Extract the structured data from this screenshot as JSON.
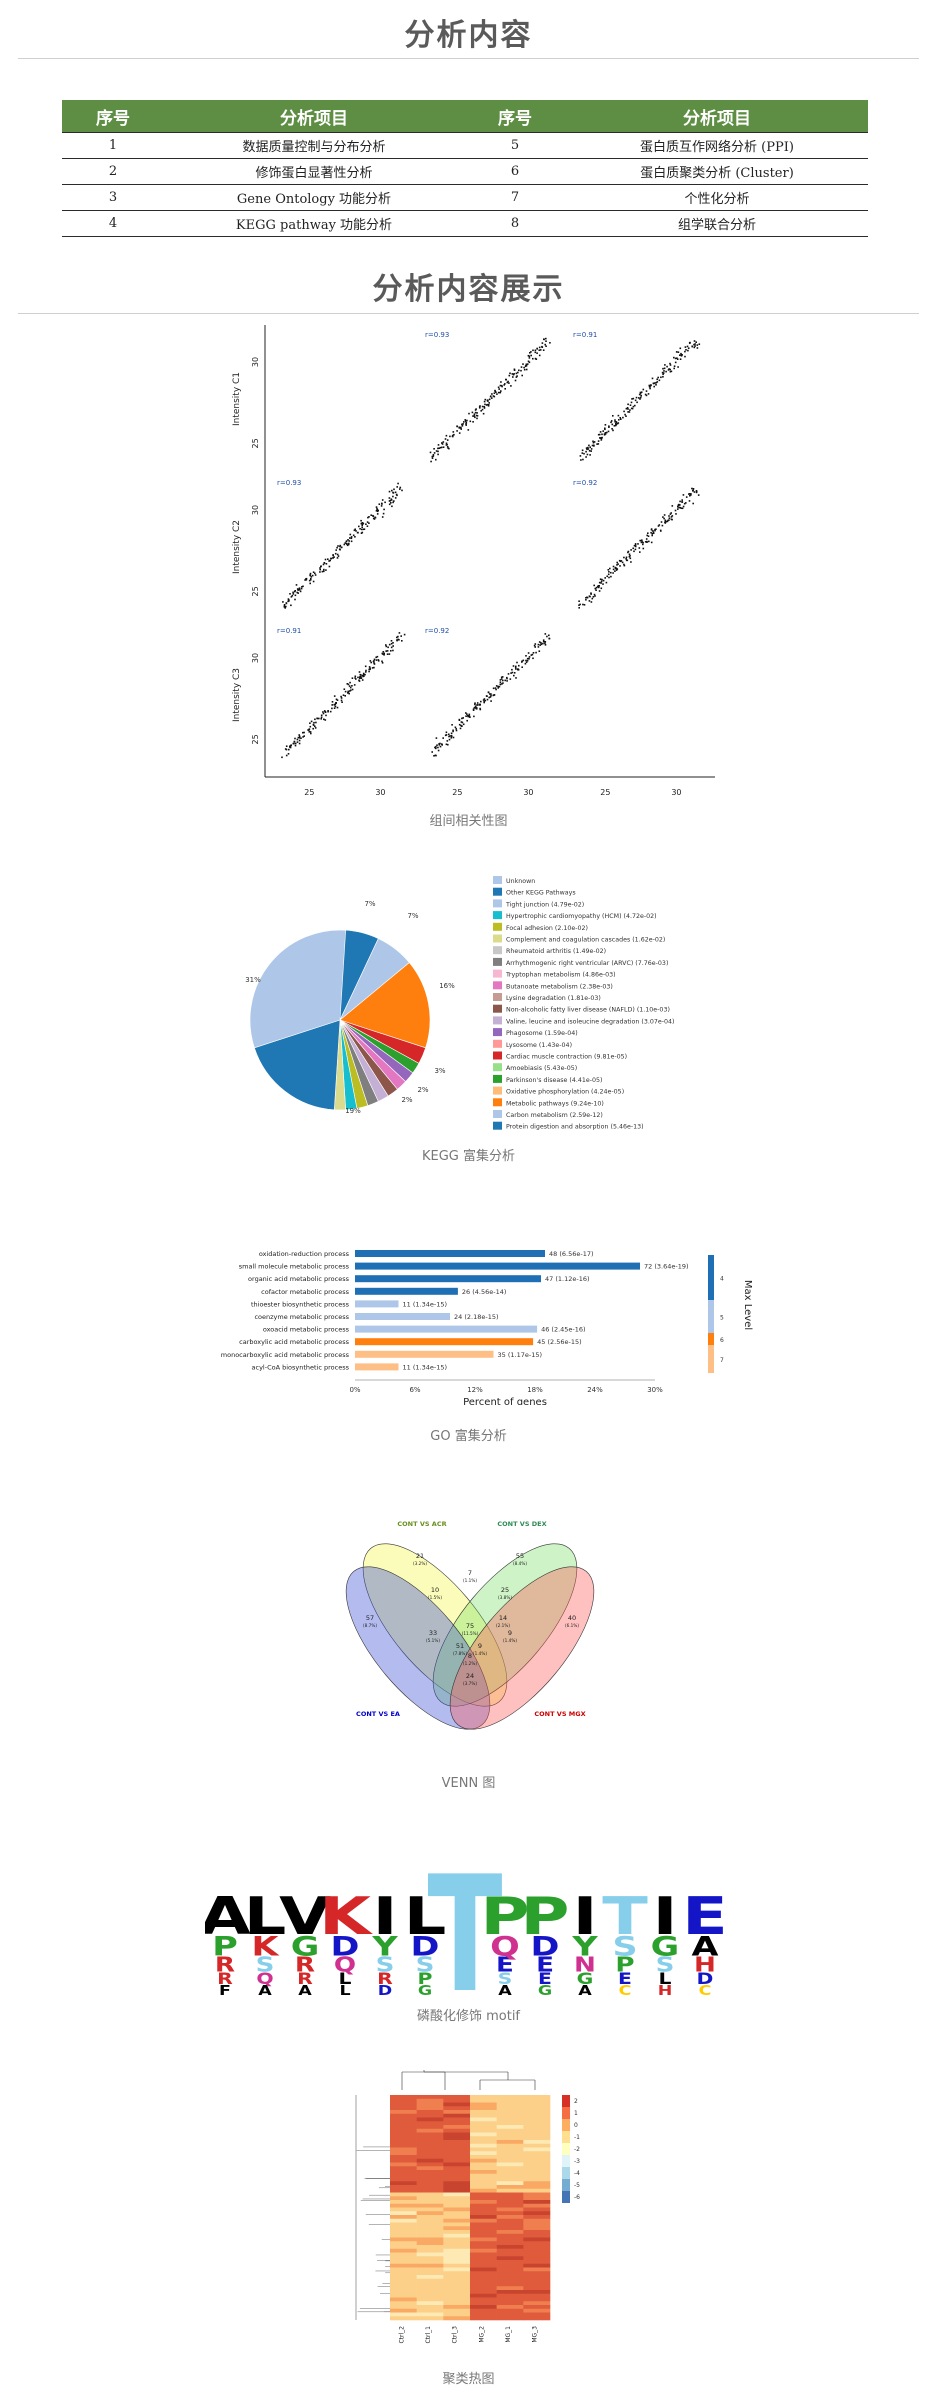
{
  "section1": {
    "title": "分析内容"
  },
  "table": {
    "headers": [
      "序号",
      "分析项目",
      "序号",
      "分析项目"
    ],
    "rows": [
      [
        "1",
        "数据质量控制与分布分析",
        "5",
        "蛋白质互作网络分析 (PPI)"
      ],
      [
        "2",
        "修饰蛋白显著性分析",
        "6",
        "蛋白质聚类分析 (Cluster)"
      ],
      [
        "3",
        "Gene Ontology 功能分析",
        "7",
        "个性化分析"
      ],
      [
        "4",
        "KEGG pathway 功能分析",
        "8",
        "组学联合分析"
      ]
    ]
  },
  "section2": {
    "title": "分析内容展示"
  },
  "figures": {
    "correlation": {
      "caption": "组间相关性图",
      "row_labels": [
        "Intensity C1",
        "Intensity C2",
        "Intensity C3"
      ],
      "col_labels": [
        "Intensity C1",
        "Intensity C2",
        "Intensity C3"
      ],
      "r_labels": [
        "r=0.93",
        "r=0.91",
        "r=0.93",
        "r=0.92",
        "r=0.91",
        "r=0.92"
      ],
      "ticks_a": "25",
      "ticks_b": "30"
    },
    "kegg": {
      "caption": "KEGG 富集分析",
      "slice_labels": [
        "7%",
        "7%",
        "16%",
        "3%",
        "2%",
        "2%",
        "19%",
        "31%"
      ],
      "legend": [
        {
          "label": "Unknown",
          "color": "#aec7e8"
        },
        {
          "label": "Other KEGG Pathways",
          "color": "#1f77b4"
        },
        {
          "label": "Tight junction (4.79e-02)",
          "color": "#aec7e8"
        },
        {
          "label": "Hypertrophic cardiomyopathy (HCM) (4.72e-02)",
          "color": "#17becf"
        },
        {
          "label": "Focal adhesion (2.10e-02)",
          "color": "#bcbd22"
        },
        {
          "label": "Complement and coagulation cascades (1.62e-02)",
          "color": "#dbdb8d"
        },
        {
          "label": "Rheumatoid arthritis (1.49e-02)",
          "color": "#c7c7c7"
        },
        {
          "label": "Arrhythmogenic right ventricular (ARVC) (7.76e-03)",
          "color": "#7f7f7f"
        },
        {
          "label": "Tryptophan metabolism (4.86e-03)",
          "color": "#f7b6d2"
        },
        {
          "label": "Butanoate metabolism (2.38e-03)",
          "color": "#e377c2"
        },
        {
          "label": "Lysine degradation (1.81e-03)",
          "color": "#c49c94"
        },
        {
          "label": "Non-alcoholic fatty liver disease (NAFLD) (1.10e-03)",
          "color": "#8c564b"
        },
        {
          "label": "Valine, leucine and isoleucine degradation (3.07e-04)",
          "color": "#c5b0d5"
        },
        {
          "label": "Phagosome (1.59e-04)",
          "color": "#9467bd"
        },
        {
          "label": "Lysosome (1.43e-04)",
          "color": "#ff9896"
        },
        {
          "label": "Cardiac muscle contraction (9.81e-05)",
          "color": "#d62728"
        },
        {
          "label": "Amoebiasis (5.43e-05)",
          "color": "#98df8a"
        },
        {
          "label": "Parkinson's disease (4.41e-05)",
          "color": "#2ca02c"
        },
        {
          "label": "Oxidative phosphorylation (4.24e-05)",
          "color": "#ffbb78"
        },
        {
          "label": "Metabolic pathways (9.24e-10)",
          "color": "#ff7f0e"
        },
        {
          "label": "Carbon metabolism (2.59e-12)",
          "color": "#aec7e8"
        },
        {
          "label": "Protein digestion and absorption (5.46e-13)",
          "color": "#1f77b4"
        }
      ]
    },
    "go": {
      "caption": "GO 富集分析",
      "xlabel": "Percent of genes",
      "legend_title": "Max Level",
      "ticks": [
        "0%",
        "6%",
        "12%",
        "18%",
        "24%",
        "30%"
      ],
      "terms": [
        {
          "label": "oxidation-reduction process",
          "value": 48,
          "text": "48 (6.56e-17)",
          "level": 4
        },
        {
          "label": "small molecule metabolic process",
          "value": 72,
          "text": "72 (3.64e-19)",
          "level": 4
        },
        {
          "label": "organic acid metabolic process",
          "value": 47,
          "text": "47 (1.12e-16)",
          "level": 4
        },
        {
          "label": "cofactor metabolic process",
          "value": 26,
          "text": "26 (4.56e-14)",
          "level": 4
        },
        {
          "label": "thioester biosynthetic process",
          "value": 11,
          "text": "11 (1.34e-15)",
          "level": 5
        },
        {
          "label": "coenzyme metabolic process",
          "value": 24,
          "text": "24 (2.18e-15)",
          "level": 5
        },
        {
          "label": "oxoacid metabolic process",
          "value": 46,
          "text": "46 (2.45e-16)",
          "level": 5
        },
        {
          "label": "carboxylic acid metabolic process",
          "value": 45,
          "text": "45 (2.56e-15)",
          "level": 6
        },
        {
          "label": "monocarboxylic acid metabolic process",
          "value": 35,
          "text": "35 (1.17e-15)",
          "level": 7
        },
        {
          "label": "acyl-CoA biosynthetic process",
          "value": 11,
          "text": "11 (1.34e-15)",
          "level": 7
        }
      ],
      "levels": [
        {
          "level": 4,
          "color": "#1f6fb4"
        },
        {
          "level": 5,
          "color": "#aec7e8"
        },
        {
          "level": 6,
          "color": "#ff7f0e"
        },
        {
          "level": 7,
          "color": "#fdbf85"
        }
      ]
    },
    "venn": {
      "caption": "VENN 图",
      "set_labels": [
        "CONT VS ACR",
        "CONT VS DEX",
        "CONT VS EA",
        "CONT VS MGX"
      ],
      "set_label_colors": [
        "#6b8e23",
        "#2e8b57",
        "#0000cd",
        "#cc0000"
      ],
      "regions": [
        {
          "count": "21",
          "pct": "(3.2%)"
        },
        {
          "count": "55",
          "pct": "(8.4%)"
        },
        {
          "count": "57",
          "pct": "(8.7%)"
        },
        {
          "count": "40",
          "pct": "(6.1%)"
        },
        {
          "count": "7",
          "pct": "(1.1%)"
        },
        {
          "count": "25",
          "pct": "(3.8%)"
        },
        {
          "count": "8",
          "pct": "(1.2%)"
        },
        {
          "count": "10",
          "pct": "(1.5%)"
        },
        {
          "count": "14",
          "pct": "(2.1%)"
        },
        {
          "count": "75",
          "pct": "(11.5%)"
        },
        {
          "count": "33",
          "pct": "(5.1%)"
        },
        {
          "count": "9",
          "pct": "(1.4%)"
        },
        {
          "count": "51",
          "pct": "(7.8%)"
        },
        {
          "count": "9",
          "pct": "(1.4%)"
        },
        {
          "count": "24",
          "pct": "(3.7%)"
        }
      ]
    },
    "motif": {
      "caption": "磷酸化修饰 motif",
      "columns": [
        [
          "A",
          "P",
          "R",
          "R",
          "F"
        ],
        [
          "L",
          "K",
          "S",
          "Q",
          "A"
        ],
        [
          "V",
          "G",
          "R",
          "R",
          "A"
        ],
        [
          "K",
          "D",
          "Q",
          "L",
          "L"
        ],
        [
          "I",
          "Y",
          "S",
          "R",
          "D"
        ],
        [
          "L",
          "D",
          "S",
          "P",
          "G"
        ],
        [
          "T",
          "",
          "",
          " ",
          ""
        ],
        [
          "P",
          "Q",
          "E",
          "S",
          "A"
        ],
        [
          "P",
          "D",
          "E",
          "E",
          "G"
        ],
        [
          "I",
          "Y",
          "N",
          "G",
          "A"
        ],
        [
          "T",
          "S",
          "P",
          "E",
          "C"
        ],
        [
          "I",
          "G",
          "S",
          "L",
          "H"
        ],
        [
          "E",
          "A",
          "H",
          "D",
          "C"
        ]
      ],
      "colors": {
        "A": "#000000",
        "L": "#000000",
        "V": "#000000",
        "I": "#000000",
        "F": "#000000",
        "P": "#2ca02c",
        "G": "#2ca02c",
        "Y": "#2ca02c",
        "K": "#d62728",
        "R": "#d62728",
        "H": "#d62728",
        "D": "#1515c8",
        "E": "#1515c8",
        "S": "#87ceeb",
        "T": "#87ceeb",
        "Q": "#d0308f",
        "N": "#d0308f",
        "C": "#ffcc00",
        "M": "#000000",
        "W": "#000000"
      }
    },
    "heatmap": {
      "caption": "聚类热图",
      "scale_ticks": [
        "2",
        "1",
        "0",
        "-1",
        "-2",
        "-3",
        "-4",
        "-5",
        "-6"
      ],
      "col_labels": [
        "Ctrl_2",
        "Ctrl_1",
        "Ctrl_3",
        "MG_2",
        "MG_1",
        "MG_3"
      ]
    }
  }
}
